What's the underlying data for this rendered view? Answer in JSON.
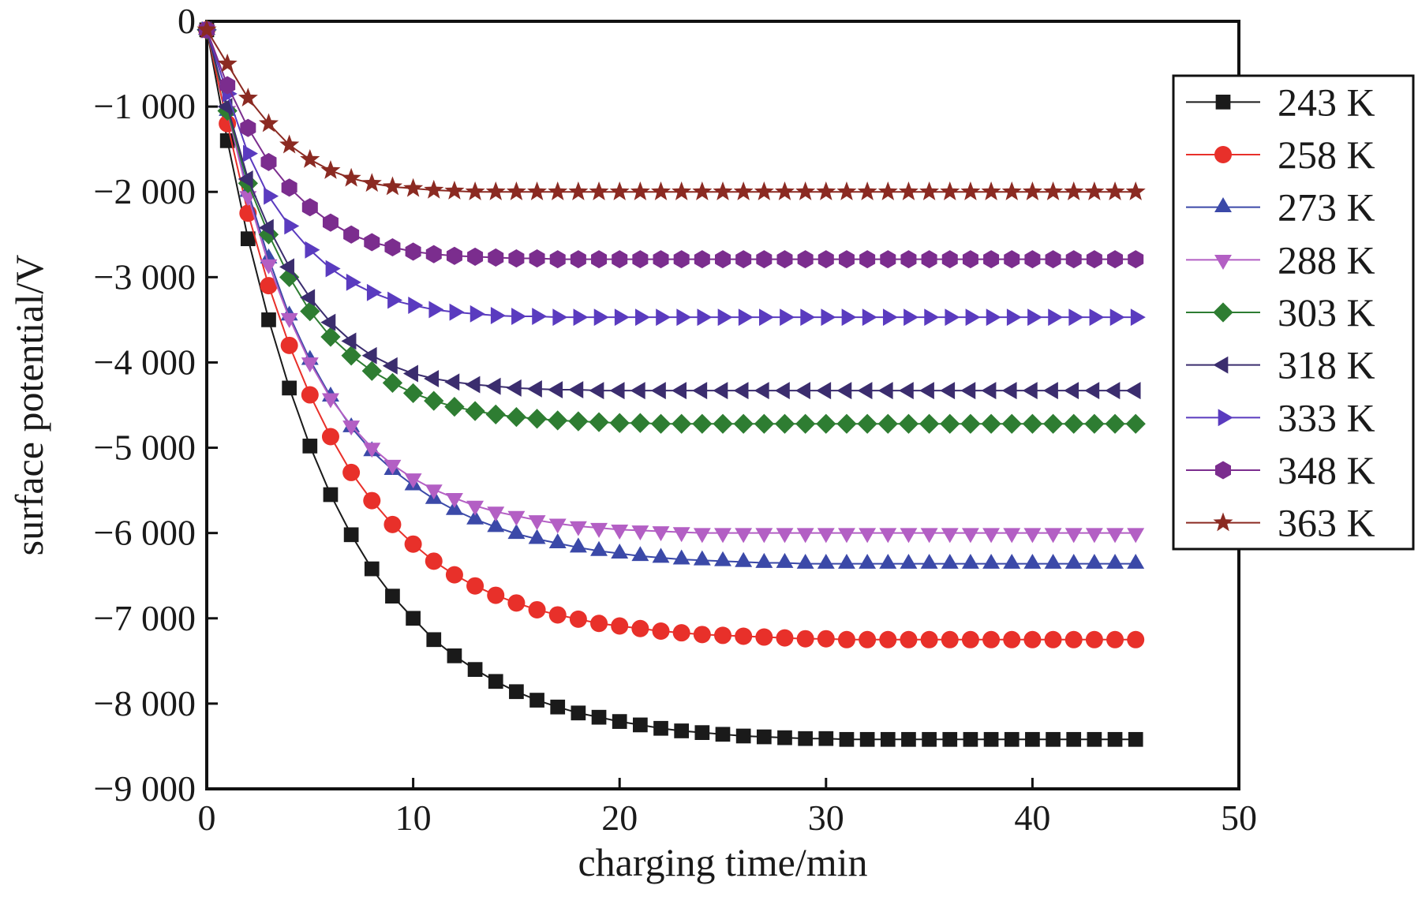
{
  "chart_data": {
    "type": "line",
    "title": "",
    "xlabel": "charging time/min",
    "ylabel": "surface potential/V",
    "xlim": [
      0,
      50
    ],
    "ylim": [
      -9000,
      0
    ],
    "x_ticks": [
      0,
      10,
      20,
      30,
      40,
      50
    ],
    "x_tick_labels": [
      "0",
      "10",
      "20",
      "30",
      "40",
      "50"
    ],
    "y_ticks": [
      0,
      -1000,
      -2000,
      -3000,
      -4000,
      -5000,
      -6000,
      -7000,
      -8000,
      -9000
    ],
    "y_tick_labels": [
      "0",
      "−1 000",
      "−2 000",
      "−3 000",
      "−4 000",
      "−5 000",
      "−6 000",
      "−7 000",
      "−8 000",
      "−9 000"
    ],
    "grid": false,
    "legend_position": "right",
    "x": [
      0,
      1,
      2,
      3,
      4,
      5,
      6,
      7,
      8,
      9,
      10,
      11,
      12,
      13,
      14,
      15,
      16,
      17,
      18,
      19,
      20,
      21,
      22,
      23,
      24,
      25,
      26,
      27,
      28,
      29,
      30,
      31,
      32,
      33,
      34,
      35,
      36,
      37,
      38,
      39,
      40,
      41,
      42,
      43,
      44,
      45
    ],
    "series": [
      {
        "name": "243 K",
        "color": "#1a1a1a",
        "marker": "square",
        "values": [
          -100,
          -1400,
          -2550,
          -3500,
          -4300,
          -4980,
          -5550,
          -6020,
          -6420,
          -6740,
          -7000,
          -7250,
          -7440,
          -7600,
          -7740,
          -7860,
          -7960,
          -8040,
          -8110,
          -8160,
          -8210,
          -8250,
          -8290,
          -8320,
          -8340,
          -8360,
          -8380,
          -8390,
          -8400,
          -8410,
          -8410,
          -8420,
          -8420,
          -8420,
          -8420,
          -8420,
          -8420,
          -8420,
          -8420,
          -8420,
          -8420,
          -8420,
          -8420,
          -8420,
          -8420,
          -8420
        ]
      },
      {
        "name": "258 K",
        "color": "#e8302a",
        "marker": "circle",
        "values": [
          -100,
          -1200,
          -2250,
          -3100,
          -3800,
          -4380,
          -4870,
          -5290,
          -5620,
          -5900,
          -6130,
          -6330,
          -6490,
          -6620,
          -6730,
          -6820,
          -6900,
          -6960,
          -7010,
          -7060,
          -7090,
          -7120,
          -7150,
          -7170,
          -7190,
          -7200,
          -7210,
          -7220,
          -7230,
          -7240,
          -7240,
          -7250,
          -7250,
          -7250,
          -7250,
          -7250,
          -7250,
          -7250,
          -7250,
          -7250,
          -7250,
          -7250,
          -7250,
          -7250,
          -7250,
          -7250
        ]
      },
      {
        "name": "273 K",
        "color": "#3b49a8",
        "marker": "triangle-up",
        "values": [
          -100,
          -1050,
          -2000,
          -2780,
          -3450,
          -3970,
          -4400,
          -4760,
          -5040,
          -5260,
          -5440,
          -5600,
          -5730,
          -5840,
          -5930,
          -6010,
          -6070,
          -6120,
          -6170,
          -6210,
          -6240,
          -6270,
          -6290,
          -6310,
          -6320,
          -6330,
          -6340,
          -6350,
          -6350,
          -6360,
          -6360,
          -6360,
          -6360,
          -6360,
          -6360,
          -6360,
          -6360,
          -6360,
          -6360,
          -6360,
          -6360,
          -6360,
          -6360,
          -6360,
          -6360,
          -6360
        ]
      },
      {
        "name": "288 K",
        "color": "#b35fc4",
        "marker": "triangle-down",
        "values": [
          -100,
          -1050,
          -2050,
          -2850,
          -3480,
          -4000,
          -4420,
          -4740,
          -5000,
          -5200,
          -5360,
          -5490,
          -5590,
          -5680,
          -5750,
          -5800,
          -5850,
          -5890,
          -5920,
          -5940,
          -5960,
          -5970,
          -5980,
          -5990,
          -6000,
          -6000,
          -6000,
          -6000,
          -6000,
          -6000,
          -6000,
          -6000,
          -6000,
          -6000,
          -6000,
          -6000,
          -6000,
          -6000,
          -6000,
          -6000,
          -6000,
          -6000,
          -6000,
          -6000,
          -6000,
          -6000
        ]
      },
      {
        "name": "303 K",
        "color": "#2e7d32",
        "marker": "diamond",
        "values": [
          -100,
          -1050,
          -1900,
          -2500,
          -3000,
          -3400,
          -3700,
          -3920,
          -4100,
          -4240,
          -4360,
          -4450,
          -4520,
          -4570,
          -4610,
          -4640,
          -4660,
          -4680,
          -4690,
          -4700,
          -4710,
          -4710,
          -4720,
          -4720,
          -4720,
          -4720,
          -4720,
          -4720,
          -4720,
          -4720,
          -4720,
          -4720,
          -4720,
          -4720,
          -4720,
          -4720,
          -4720,
          -4720,
          -4720,
          -4720,
          -4720,
          -4720,
          -4720,
          -4720,
          -4720,
          -4720
        ]
      },
      {
        "name": "318 K",
        "color": "#3b2d6e",
        "marker": "triangle-left",
        "values": [
          -100,
          -1000,
          -1850,
          -2420,
          -2880,
          -3240,
          -3530,
          -3750,
          -3920,
          -4040,
          -4130,
          -4190,
          -4230,
          -4260,
          -4280,
          -4300,
          -4310,
          -4320,
          -4320,
          -4330,
          -4330,
          -4330,
          -4330,
          -4330,
          -4330,
          -4330,
          -4330,
          -4330,
          -4330,
          -4330,
          -4330,
          -4330,
          -4330,
          -4330,
          -4330,
          -4330,
          -4330,
          -4330,
          -4330,
          -4330,
          -4330,
          -4330,
          -4330,
          -4330,
          -4330,
          -4330
        ]
      },
      {
        "name": "333 K",
        "color": "#5a3bbf",
        "marker": "triangle-right",
        "values": [
          -100,
          -850,
          -1550,
          -2050,
          -2400,
          -2680,
          -2900,
          -3060,
          -3180,
          -3270,
          -3330,
          -3380,
          -3410,
          -3430,
          -3450,
          -3460,
          -3460,
          -3470,
          -3470,
          -3470,
          -3470,
          -3470,
          -3470,
          -3470,
          -3470,
          -3470,
          -3470,
          -3470,
          -3470,
          -3470,
          -3470,
          -3470,
          -3470,
          -3470,
          -3470,
          -3470,
          -3470,
          -3470,
          -3470,
          -3470,
          -3470,
          -3470,
          -3470,
          -3470,
          -3470,
          -3470
        ]
      },
      {
        "name": "348 K",
        "color": "#7b2d8e",
        "marker": "hexagon",
        "values": [
          -100,
          -750,
          -1250,
          -1650,
          -1950,
          -2180,
          -2360,
          -2500,
          -2590,
          -2650,
          -2700,
          -2730,
          -2750,
          -2760,
          -2770,
          -2780,
          -2780,
          -2790,
          -2790,
          -2790,
          -2790,
          -2790,
          -2790,
          -2790,
          -2790,
          -2790,
          -2790,
          -2790,
          -2790,
          -2790,
          -2790,
          -2790,
          -2790,
          -2790,
          -2790,
          -2790,
          -2790,
          -2790,
          -2790,
          -2790,
          -2790,
          -2790,
          -2790,
          -2790,
          -2790,
          -2790
        ]
      },
      {
        "name": "363 K",
        "color": "#8b2a22",
        "marker": "star",
        "values": [
          -100,
          -500,
          -900,
          -1200,
          -1450,
          -1620,
          -1750,
          -1840,
          -1900,
          -1940,
          -1960,
          -1980,
          -1990,
          -2000,
          -2000,
          -2000,
          -2000,
          -2000,
          -2000,
          -2000,
          -2000,
          -2000,
          -2000,
          -2000,
          -2000,
          -2000,
          -2000,
          -2000,
          -2000,
          -2000,
          -2000,
          -2000,
          -2000,
          -2000,
          -2000,
          -2000,
          -2000,
          -2000,
          -2000,
          -2000,
          -2000,
          -2000,
          -2000,
          -2000,
          -2000,
          -2000
        ]
      }
    ]
  }
}
